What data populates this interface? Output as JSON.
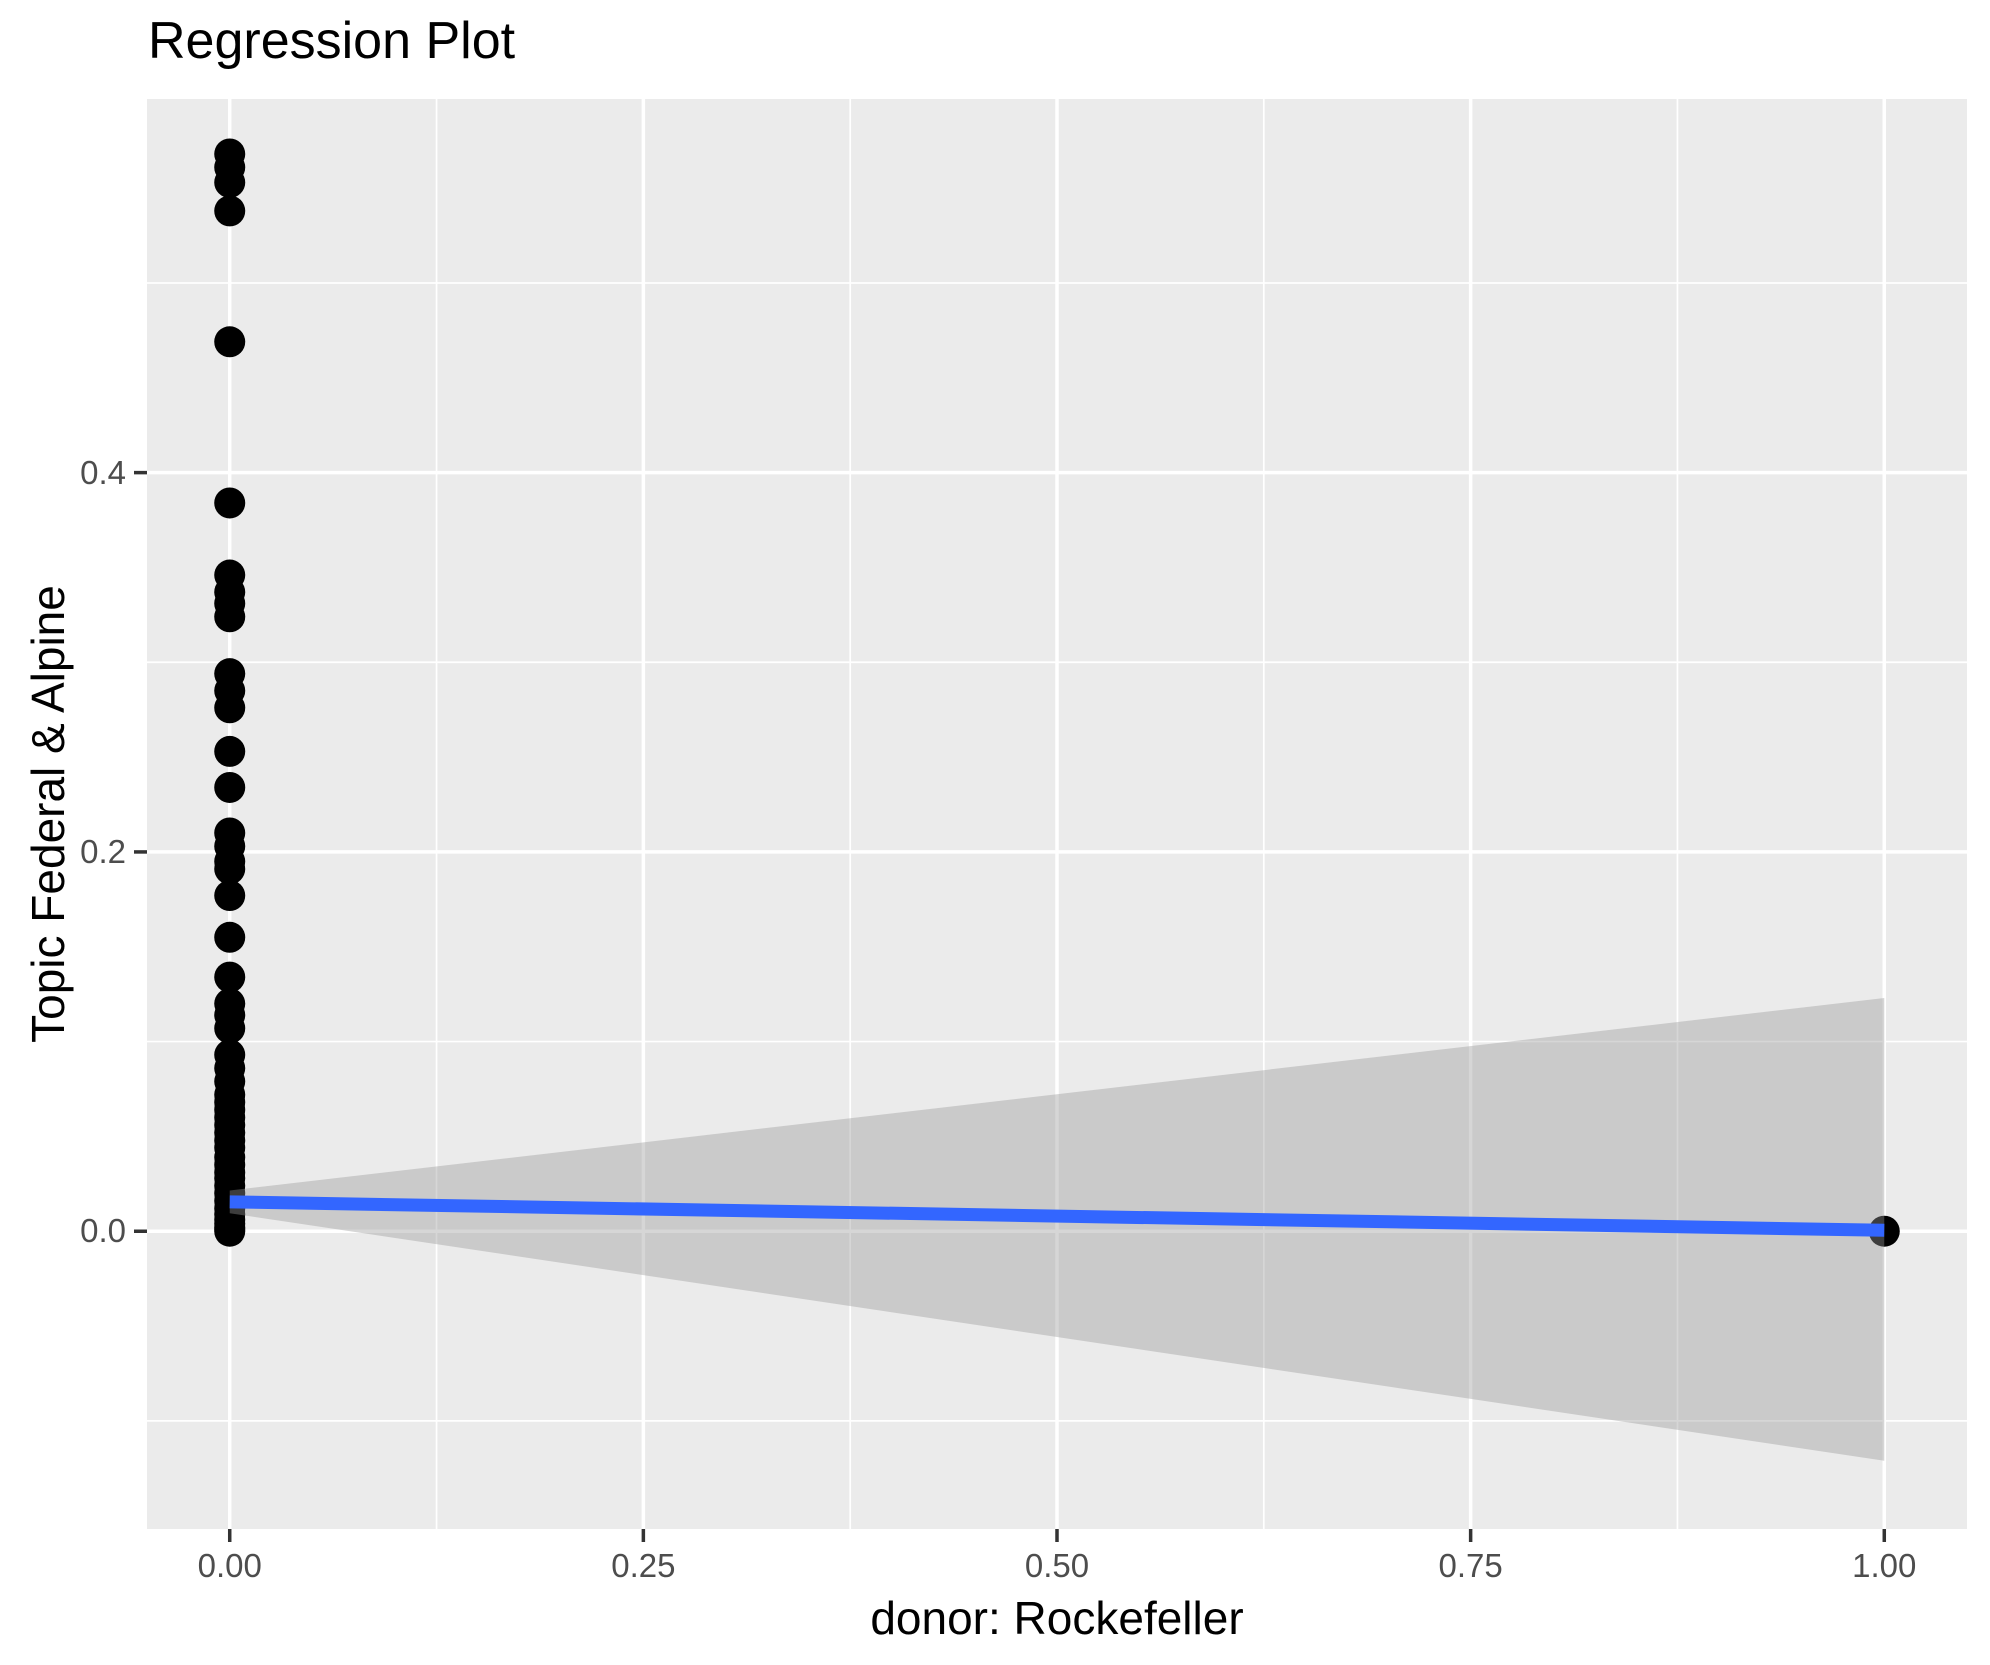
{
  "chart_data": {
    "type": "scatter",
    "title": "Regression Plot",
    "xlabel": "donor: Rockefeller",
    "ylabel": "Topic Federal & Alpine",
    "xlim": [
      -0.05,
      1.05
    ],
    "ylim": [
      -0.157,
      0.597
    ],
    "grid": true,
    "legend_position": "none",
    "x_major_ticks": [
      {
        "value": 0.0,
        "label": "0.00"
      },
      {
        "value": 0.25,
        "label": "0.25"
      },
      {
        "value": 0.5,
        "label": "0.50"
      },
      {
        "value": 0.75,
        "label": "0.75"
      },
      {
        "value": 1.0,
        "label": "1.00"
      }
    ],
    "y_major_ticks": [
      {
        "value": 0.0,
        "label": "0.0"
      },
      {
        "value": 0.2,
        "label": "0.2"
      },
      {
        "value": 0.4,
        "label": "0.4"
      }
    ],
    "x_minor_gridlines": [
      0.125,
      0.375,
      0.625,
      0.875
    ],
    "y_minor_gridlines": [
      -0.1,
      0.1,
      0.3,
      0.5
    ],
    "series": [
      {
        "name": "observations-donor-0",
        "x": 0,
        "y": [
          0.568,
          0.561,
          0.553,
          0.538,
          0.469,
          0.384,
          0.346,
          0.337,
          0.331,
          0.324,
          0.294,
          0.285,
          0.276,
          0.253,
          0.234,
          0.21,
          0.203,
          0.195,
          0.191,
          0.177,
          0.155,
          0.134,
          0.12,
          0.114,
          0.107,
          0.093,
          0.086,
          0.079,
          0.072,
          0.068,
          0.064,
          0.06,
          0.056,
          0.052,
          0.048,
          0.044,
          0.039,
          0.035,
          0.031,
          0.028,
          0.024,
          0.02,
          0.016,
          0.012,
          0.009,
          0.006,
          0.004,
          0.002,
          0.001,
          0.0
        ]
      },
      {
        "name": "observations-donor-1",
        "x": 1,
        "y": [
          0.0
        ]
      }
    ],
    "regression_line": {
      "x": [
        0,
        1
      ],
      "y": [
        0.0155,
        0.0005
      ]
    },
    "confidence_band": {
      "x": [
        0,
        1
      ],
      "upper": [
        0.0215,
        0.123
      ],
      "lower": [
        0.0095,
        -0.121
      ]
    },
    "colors": {
      "panel_background": "#EBEBEB",
      "gridline": "#FFFFFF",
      "point": "#000000",
      "regression_line": "#3366FF",
      "confidence_band": "#999999",
      "confidence_band_alpha": 0.4,
      "tick_label": "#4D4D4D",
      "tick_mark": "#333333",
      "title_text": "#000000"
    }
  }
}
